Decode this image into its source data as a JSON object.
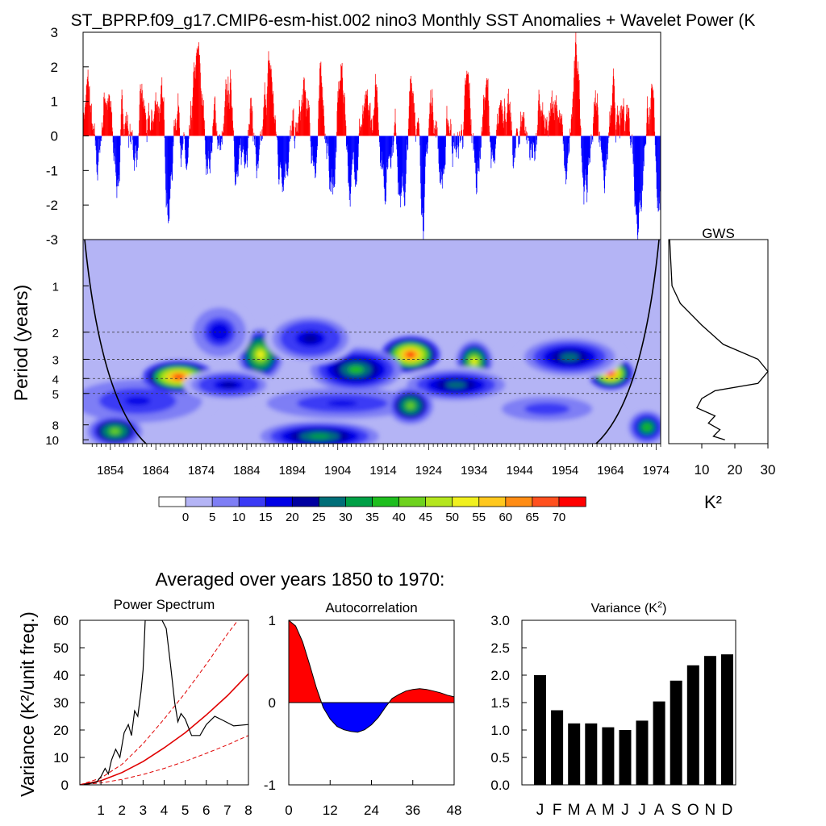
{
  "title": "ST_BPRP.f09_g17.CMIP6-esm-hist.002 nino3 Monthly SST Anomalies + Wavelet Power (K",
  "colors": {
    "positive": "#ff0000",
    "negative": "#0000ff",
    "bar": "#000000",
    "red_line": "#e00000"
  },
  "chart_data": [
    {
      "id": "timeseries",
      "type": "bar",
      "ylim": [
        -3,
        3
      ],
      "yticks": [
        -3,
        -2,
        -1,
        0,
        1,
        2,
        3
      ],
      "xlim": [
        1848,
        1975
      ],
      "grid": false
    },
    {
      "id": "wavelet",
      "type": "heatmap",
      "ylabel": "Period (years)",
      "yticks": [
        1,
        2,
        3,
        4,
        5,
        8,
        10
      ],
      "xticks": [
        1854,
        1864,
        1874,
        1884,
        1894,
        1904,
        1914,
        1924,
        1934,
        1944,
        1954,
        1964,
        1974
      ],
      "colorbar": {
        "labels": [
          "0",
          "5",
          "10",
          "15",
          "20",
          "25",
          "30",
          "35",
          "40",
          "45",
          "50",
          "55",
          "60",
          "65",
          "70"
        ],
        "colors": [
          "#ffffff",
          "#b4b4f5",
          "#7e7ef5",
          "#3a3af5",
          "#0000e6",
          "#0000a0",
          "#006e78",
          "#00a046",
          "#1ebe1e",
          "#6ed21e",
          "#b4e61e",
          "#f0f01e",
          "#ffc81e",
          "#ff8c14",
          "#ff501e",
          "#ff0000"
        ]
      },
      "hot_spots": [
        {
          "year": 1869,
          "period": 3.9,
          "power": 70
        },
        {
          "year": 1920,
          "period": 2.8,
          "power": 70
        },
        {
          "year": 1964,
          "period": 3.7,
          "power": 70
        },
        {
          "year": 1887,
          "period": 2.8,
          "power": 50
        },
        {
          "year": 1934,
          "period": 3.1,
          "power": 50
        }
      ]
    },
    {
      "id": "gws",
      "type": "line",
      "title": "GWS",
      "xlabel": "K²",
      "xticks": [
        10,
        20,
        30
      ],
      "xlim": [
        0,
        30
      ],
      "points": [
        {
          "period": 0.5,
          "power": 0.3
        },
        {
          "period": 1.0,
          "power": 1.0
        },
        {
          "period": 1.3,
          "power": 3.5
        },
        {
          "period": 1.8,
          "power": 10.0
        },
        {
          "period": 2.4,
          "power": 16.5
        },
        {
          "period": 3.0,
          "power": 27.0
        },
        {
          "period": 3.6,
          "power": 30.0
        },
        {
          "period": 4.3,
          "power": 27.0
        },
        {
          "period": 4.8,
          "power": 14.0
        },
        {
          "period": 5.4,
          "power": 10.0
        },
        {
          "period": 6.2,
          "power": 8.5
        },
        {
          "period": 7.0,
          "power": 14.0
        },
        {
          "period": 7.8,
          "power": 12.0
        },
        {
          "period": 8.6,
          "power": 15.5
        },
        {
          "period": 9.5,
          "power": 13.5
        },
        {
          "period": 10.0,
          "power": 17.0
        }
      ]
    },
    {
      "id": "power_spectrum",
      "type": "line",
      "title": "Power Spectrum",
      "ylabel": "Variance (K²/unit freq.)",
      "xticks": [
        1,
        2,
        3,
        4,
        5,
        6,
        7,
        8
      ],
      "yticks": [
        0,
        10,
        20,
        30,
        40,
        50,
        60
      ],
      "xlim": [
        0,
        8
      ],
      "ylim": [
        0,
        60
      ],
      "spectrum": [
        [
          0.2,
          0.2
        ],
        [
          0.5,
          0.5
        ],
        [
          0.8,
          1.0
        ],
        [
          1.0,
          3.0
        ],
        [
          1.2,
          6.0
        ],
        [
          1.35,
          4.0
        ],
        [
          1.5,
          9.0
        ],
        [
          1.7,
          13.0
        ],
        [
          1.9,
          10.0
        ],
        [
          2.1,
          19.0
        ],
        [
          2.3,
          22.0
        ],
        [
          2.45,
          18.0
        ],
        [
          2.6,
          27.0
        ],
        [
          2.75,
          25.0
        ],
        [
          2.9,
          34.0
        ],
        [
          3.0,
          42.0
        ],
        [
          3.1,
          60.0
        ],
        [
          3.5,
          60.0
        ],
        [
          3.9,
          60.0
        ],
        [
          4.1,
          57.0
        ],
        [
          4.3,
          44.0
        ],
        [
          4.5,
          30.0
        ],
        [
          4.65,
          23.0
        ],
        [
          4.8,
          26.0
        ],
        [
          5.0,
          24.0
        ],
        [
          5.3,
          18.0
        ],
        [
          5.7,
          18.0
        ],
        [
          6.0,
          22.0
        ],
        [
          6.4,
          25.0
        ],
        [
          6.8,
          23.5
        ],
        [
          7.3,
          21.5
        ],
        [
          8.0,
          22.0
        ]
      ],
      "red_noise": [
        [
          0,
          0
        ],
        [
          1,
          1.5
        ],
        [
          2,
          4.5
        ],
        [
          3,
          8.5
        ],
        [
          4,
          13.5
        ],
        [
          5,
          19.0
        ],
        [
          6,
          25.5
        ],
        [
          7,
          32.5
        ],
        [
          8,
          40.5
        ]
      ],
      "upper_bound": [
        [
          0,
          0
        ],
        [
          1,
          2.5
        ],
        [
          2,
          7.5
        ],
        [
          3,
          15.0
        ],
        [
          4,
          24.0
        ],
        [
          5,
          33.5
        ],
        [
          6,
          44.0
        ],
        [
          7,
          55.0
        ],
        [
          7.5,
          60.0
        ]
      ],
      "lower_bound": [
        [
          0,
          0
        ],
        [
          1,
          0.7
        ],
        [
          2,
          2.0
        ],
        [
          3,
          3.8
        ],
        [
          4,
          6.0
        ],
        [
          5,
          8.6
        ],
        [
          6,
          11.5
        ],
        [
          7,
          14.6
        ],
        [
          8,
          18.0
        ]
      ]
    },
    {
      "id": "autocorrelation",
      "type": "area",
      "title": "Autocorrelation",
      "xticks": [
        0,
        12,
        24,
        36,
        48
      ],
      "ytick_labels": [
        "-1",
        "0",
        "1"
      ],
      "xlim": [
        0,
        48
      ],
      "ylim": [
        -1,
        1
      ],
      "points": [
        [
          0,
          1.0
        ],
        [
          2,
          0.93
        ],
        [
          4,
          0.74
        ],
        [
          6,
          0.47
        ],
        [
          8,
          0.18
        ],
        [
          10,
          -0.06
        ],
        [
          12,
          -0.2
        ],
        [
          14,
          -0.29
        ],
        [
          16,
          -0.33
        ],
        [
          18,
          -0.35
        ],
        [
          20,
          -0.36
        ],
        [
          22,
          -0.33
        ],
        [
          24,
          -0.27
        ],
        [
          26,
          -0.18
        ],
        [
          28,
          -0.06
        ],
        [
          30,
          0.05
        ],
        [
          32,
          0.1
        ],
        [
          34,
          0.14
        ],
        [
          36,
          0.16
        ],
        [
          38,
          0.17
        ],
        [
          40,
          0.16
        ],
        [
          42,
          0.14
        ],
        [
          44,
          0.12
        ],
        [
          46,
          0.09
        ],
        [
          48,
          0.07
        ]
      ]
    },
    {
      "id": "variance",
      "type": "bar",
      "title": "Variance (K²)",
      "categories": [
        "J",
        "F",
        "M",
        "A",
        "M",
        "J",
        "J",
        "A",
        "S",
        "O",
        "N",
        "D"
      ],
      "values": [
        2.0,
        1.36,
        1.12,
        1.12,
        1.05,
        1.0,
        1.17,
        1.52,
        1.9,
        2.18,
        2.35,
        2.38
      ],
      "yticks": [
        "0.0",
        "0.5",
        "1.0",
        "1.5",
        "2.0",
        "2.5",
        "3.0"
      ],
      "ylim": [
        0,
        3
      ]
    }
  ],
  "averaged_caption": "Averaged over years 1850 to 1970:"
}
